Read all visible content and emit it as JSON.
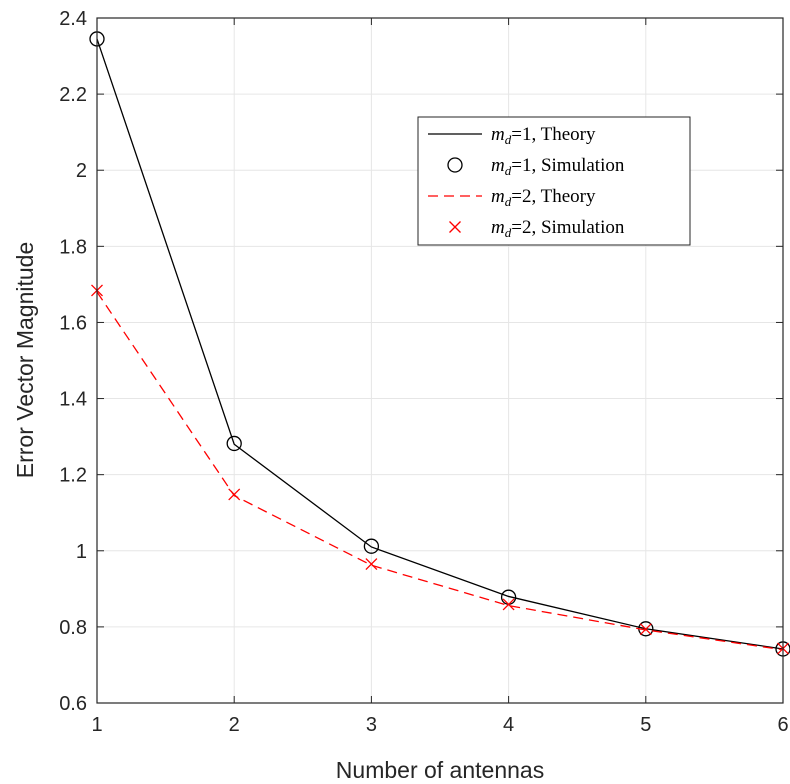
{
  "chart_data": {
    "type": "line",
    "xlabel": "Number of antennas",
    "ylabel": "Error Vector Magnitude",
    "xlim": [
      1,
      6
    ],
    "ylim": [
      0.6,
      2.4
    ],
    "xticks": [
      1,
      2,
      3,
      4,
      5,
      6
    ],
    "yticks": [
      0.6,
      0.8,
      1,
      1.2,
      1.4,
      1.6,
      1.8,
      2,
      2.2,
      2.4
    ],
    "xtick_labels": [
      "1",
      "2",
      "3",
      "4",
      "5",
      "6"
    ],
    "ytick_labels": [
      "0.6",
      "0.8",
      "1",
      "1.2",
      "1.4",
      "1.6",
      "1.8",
      "2",
      "2.2",
      "2.4"
    ],
    "grid": true,
    "legend_position": "upper-right",
    "x": [
      1,
      2,
      3,
      4,
      5,
      6
    ],
    "series": [
      {
        "label": "=1, Theory",
        "var": "m",
        "sub": "d",
        "style": "line",
        "color": "#000000",
        "dash": "solid",
        "values": [
          2.345,
          1.28,
          1.01,
          0.88,
          0.795,
          0.742
        ]
      },
      {
        "label": "=1, Simulation",
        "var": "m",
        "sub": "d",
        "style": "marker",
        "marker": "circle",
        "color": "#000000",
        "values": [
          2.345,
          1.282,
          1.012,
          0.878,
          0.795,
          0.742
        ]
      },
      {
        "label": "=2, Theory",
        "var": "m",
        "sub": "d",
        "style": "line",
        "color": "#ff0000",
        "dash": "dashed",
        "values": [
          1.68,
          1.145,
          0.962,
          0.856,
          0.792,
          0.74
        ]
      },
      {
        "label": "=2, Simulation",
        "var": "m",
        "sub": "d",
        "style": "marker",
        "marker": "x",
        "color": "#ff0000",
        "values": [
          1.684,
          1.148,
          0.965,
          0.859,
          0.794,
          0.743
        ]
      }
    ]
  }
}
